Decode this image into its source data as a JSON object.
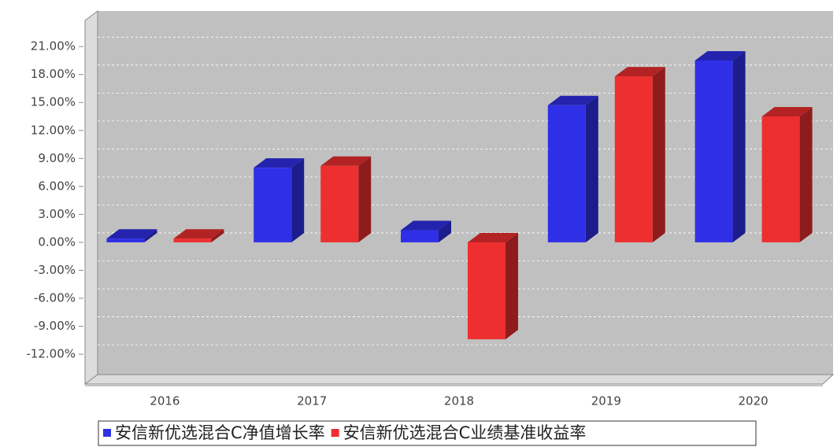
{
  "chart_data": {
    "type": "bar3d",
    "categories": [
      "2016",
      "2017",
      "2018",
      "2019",
      "2020"
    ],
    "series": [
      {
        "name": "安信新优选混合C净值增长率",
        "color": "#2f2fe8",
        "values": [
          0.4,
          8.0,
          1.3,
          14.7,
          19.5
        ]
      },
      {
        "name": "安信新优选混合C业绩基准收益率",
        "color": "#ee2f2f",
        "values": [
          0.4,
          8.2,
          -10.4,
          17.8,
          13.5
        ]
      }
    ],
    "ylim": [
      -15.2,
      23.8
    ],
    "yticks": [
      {
        "value": -12,
        "label": "-12.00%"
      },
      {
        "value": -9,
        "label": "-9.00%"
      },
      {
        "value": -6,
        "label": "-6.00%"
      },
      {
        "value": -3,
        "label": "-3.00%"
      },
      {
        "value": 0,
        "label": "0.00%"
      },
      {
        "value": 3,
        "label": "3.00%"
      },
      {
        "value": 6,
        "label": "6.00%"
      },
      {
        "value": 9,
        "label": "9.00%"
      },
      {
        "value": 12,
        "label": "12.00%"
      },
      {
        "value": 15,
        "label": "15.00%"
      },
      {
        "value": 18,
        "label": "18.00%"
      },
      {
        "value": 21,
        "label": "21.00%"
      }
    ],
    "grid": true
  }
}
